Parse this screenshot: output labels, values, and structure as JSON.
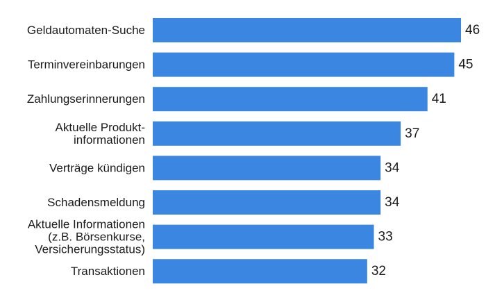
{
  "chart_data": {
    "type": "bar",
    "orientation": "horizontal",
    "categories": [
      "Geldautomaten-Suche",
      "Terminvereinbarungen",
      "Zahlungserinnerungen",
      "Aktuelle Produkt-\ninformationen",
      "Verträge kündigen",
      "Schadensmeldung",
      "Aktuelle Informationen\n(z.B. Börsenkurse,\nVersicherungsstatus)",
      "Transaktionen"
    ],
    "values": [
      46,
      45,
      41,
      37,
      34,
      34,
      33,
      32
    ],
    "xlim": [
      0,
      46
    ],
    "grid": false,
    "legend": "none",
    "bar_color": "#3a86e0"
  }
}
